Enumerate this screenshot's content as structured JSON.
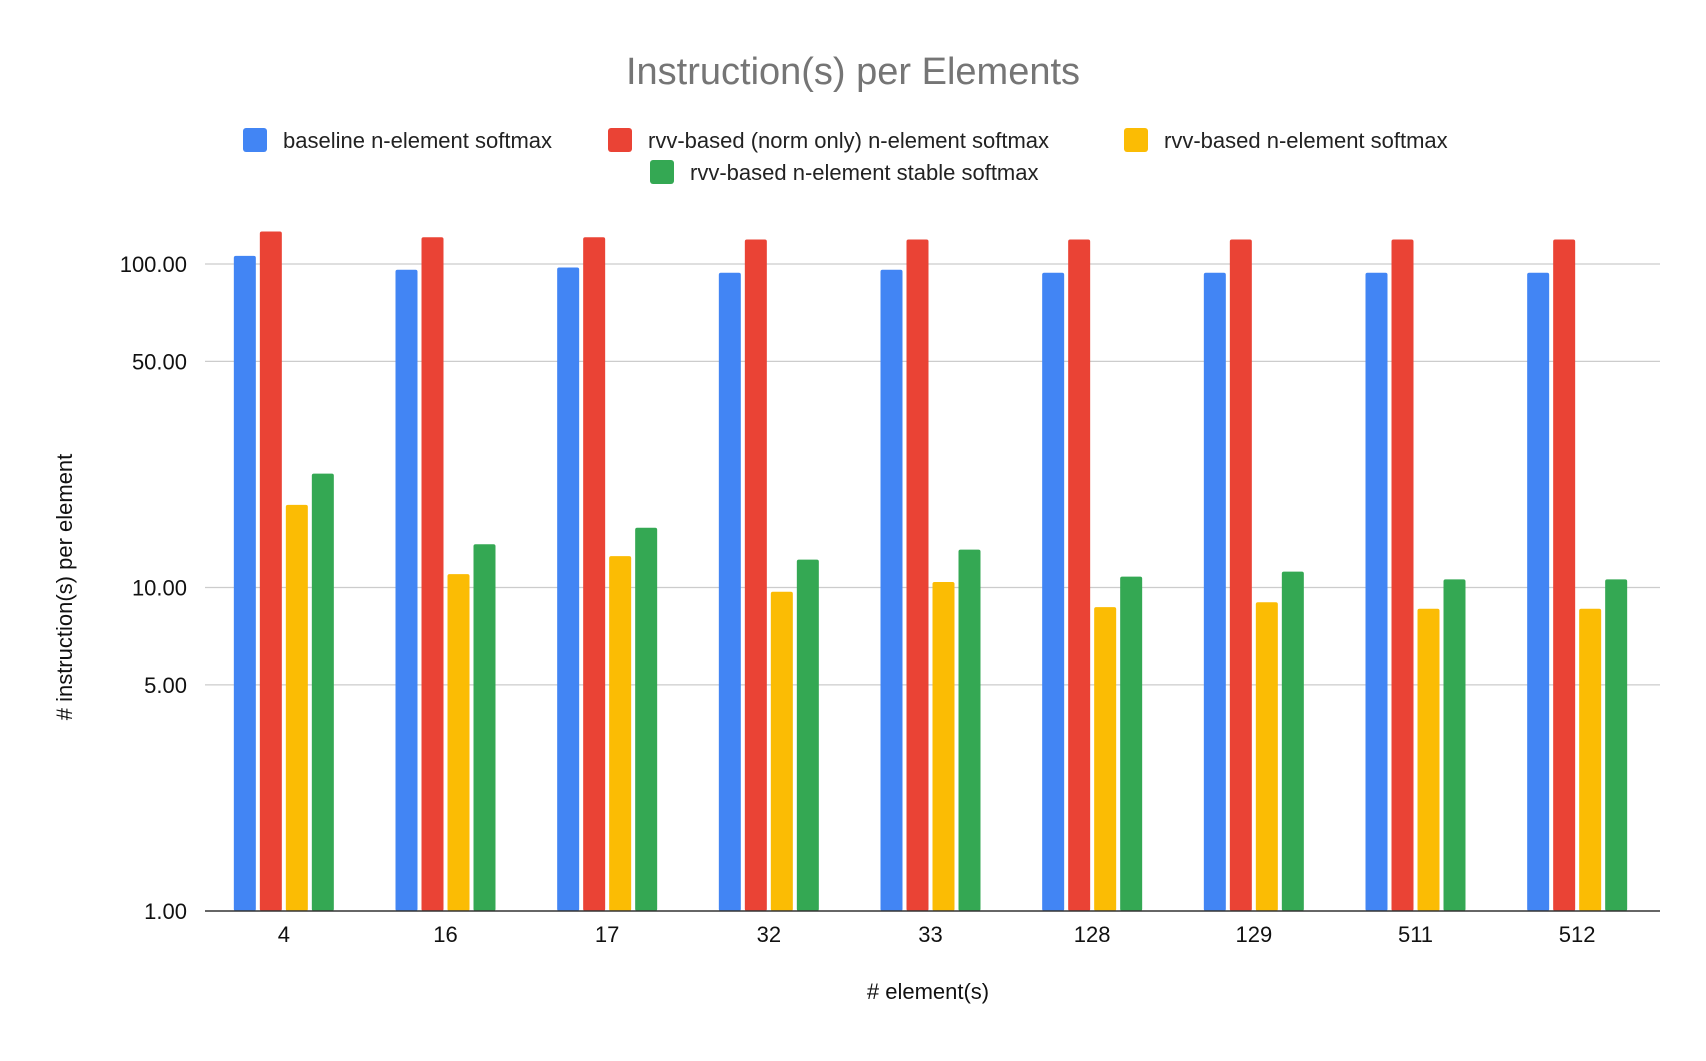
{
  "chart_data": {
    "type": "bar",
    "title": "Instruction(s) per Elements",
    "xlabel": "# element(s)",
    "ylabel": "# instruction(s) per element",
    "yscale": "log",
    "ylim": [
      1,
      140
    ],
    "yticks": [
      1,
      5,
      10,
      50,
      100
    ],
    "ytick_labels": [
      "1.00",
      "5.00",
      "10.00",
      "50.00",
      "100.00"
    ],
    "grid": true,
    "legend_position": "top",
    "categories": [
      "4",
      "16",
      "17",
      "32",
      "33",
      "128",
      "129",
      "511",
      "512"
    ],
    "series": [
      {
        "name": "baseline n-element softmax",
        "color": "#4285F4",
        "values": [
          106,
          96,
          97.5,
          94,
          96,
          94,
          94,
          94,
          94
        ]
      },
      {
        "name": "rvv-based (norm only) n-element softmax",
        "color": "#EA4335",
        "values": [
          126,
          121,
          121,
          119,
          119,
          119,
          119,
          119,
          119
        ]
      },
      {
        "name": "rvv-based n-element softmax",
        "color": "#FBBC04",
        "values": [
          18,
          11,
          12.5,
          9.7,
          10.4,
          8.7,
          9,
          8.6,
          8.6
        ]
      },
      {
        "name": "rvv-based n-element stable softmax",
        "color": "#34A853",
        "values": [
          22.5,
          13.6,
          15.3,
          12.2,
          13.1,
          10.8,
          11.2,
          10.6,
          10.6
        ]
      }
    ]
  }
}
